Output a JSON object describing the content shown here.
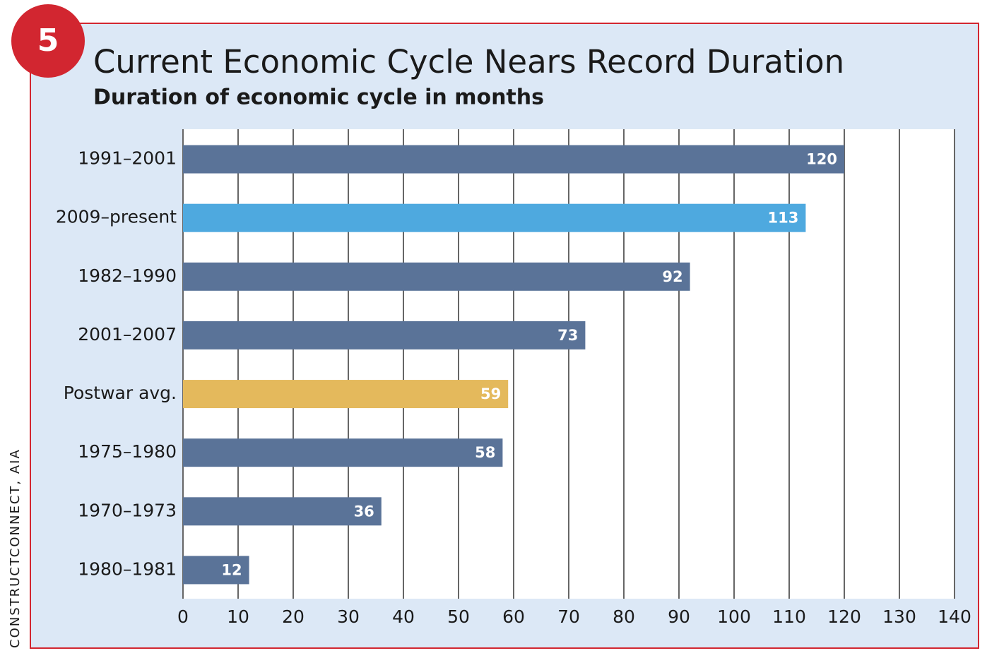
{
  "badge": "5",
  "chart_data": {
    "type": "bar",
    "orientation": "horizontal",
    "title": "Current Economic Cycle Nears Record Duration",
    "subtitle": "Duration of economic cycle in months",
    "source": "CONSTRUCTCONNECT, AIA",
    "categories": [
      "1991–2001",
      "2009–present",
      "1982–1990",
      "2001–2007",
      "Postwar avg.",
      "1975–1980",
      "1970–1973",
      "1980–1981"
    ],
    "values": [
      120,
      113,
      92,
      73,
      59,
      58,
      36,
      12
    ],
    "colors": [
      "#5a7398",
      "#4ea9df",
      "#5a7398",
      "#5a7398",
      "#e4b95c",
      "#5a7398",
      "#5a7398",
      "#5a7398"
    ],
    "xlim": [
      0,
      140
    ],
    "xticks": [
      0,
      10,
      20,
      30,
      40,
      50,
      60,
      70,
      80,
      90,
      100,
      110,
      120,
      130,
      140
    ],
    "grid": true
  }
}
